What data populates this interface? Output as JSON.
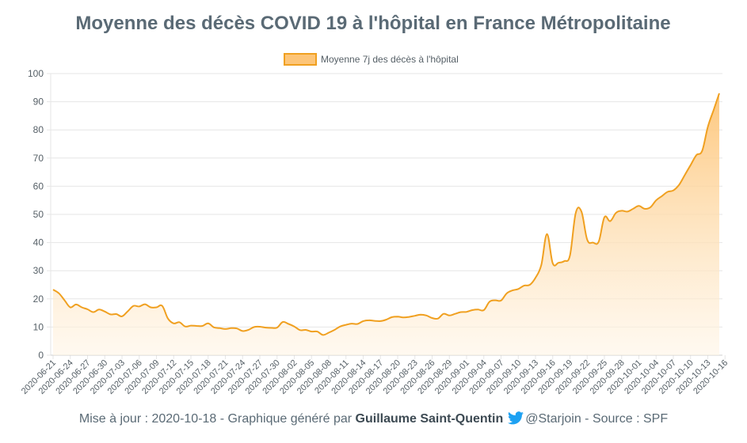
{
  "chart_data": {
    "type": "area",
    "title": "Moyenne des décès COVID 19 à l'hôpital en France Métropolitaine",
    "xlabel": "",
    "ylabel": "",
    "ylim": [
      0,
      100
    ],
    "yticks": [
      0,
      10,
      20,
      30,
      40,
      50,
      60,
      70,
      80,
      90,
      100
    ],
    "grid": true,
    "legend_position": "top-center",
    "colors": {
      "line": "#f0a020",
      "fill_top": "#fdc578",
      "fill_bottom": "#fff5e6",
      "grid": "#e6e6e6"
    },
    "x_start": "2020-06-21",
    "x_end": "2020-10-18",
    "x_tick_labels": [
      "2020-06-21",
      "2020-06-24",
      "2020-06-27",
      "2020-06-30",
      "2020-07-03",
      "2020-07-06",
      "2020-07-09",
      "2020-07-12",
      "2020-07-15",
      "2020-07-18",
      "2020-07-21",
      "2020-07-24",
      "2020-07-27",
      "2020-07-30",
      "2020-08-02",
      "2020-08-05",
      "2020-08-08",
      "2020-08-11",
      "2020-08-14",
      "2020-08-17",
      "2020-08-20",
      "2020-08-23",
      "2020-08-26",
      "2020-08-29",
      "2020-09-01",
      "2020-09-04",
      "2020-09-07",
      "2020-09-10",
      "2020-09-13",
      "2020-09-16",
      "2020-09-19",
      "2020-09-22",
      "2020-09-25",
      "2020-09-28",
      "2020-10-01",
      "2020-10-04",
      "2020-10-07",
      "2020-10-10",
      "2020-10-13",
      "2020-10-16"
    ],
    "series": [
      {
        "name": "Moyenne 7j des décès à l'hôpital",
        "values": [
          23.3,
          22.0,
          19.5,
          17.0,
          18.0,
          17.0,
          16.3,
          15.3,
          16.2,
          15.5,
          14.5,
          14.6,
          13.8,
          15.6,
          17.5,
          17.3,
          18.1,
          17.0,
          17.0,
          17.5,
          13.0,
          11.3,
          11.7,
          10.2,
          10.5,
          10.4,
          10.4,
          11.3,
          9.9,
          9.6,
          9.3,
          9.6,
          9.5,
          8.6,
          9.0,
          10.0,
          10.1,
          9.8,
          9.7,
          9.8,
          11.8,
          11.1,
          10.2,
          8.9,
          9.0,
          8.4,
          8.4,
          7.2,
          8.0,
          9.0,
          10.2,
          10.8,
          11.2,
          11.1,
          12.1,
          12.4,
          12.2,
          12.1,
          12.6,
          13.5,
          13.7,
          13.4,
          13.6,
          14.0,
          14.4,
          14.1,
          13.2,
          13.0,
          14.7,
          14.1,
          14.7,
          15.3,
          15.4,
          16.0,
          16.2,
          16.0,
          19.0,
          19.5,
          19.4,
          22.0,
          23.0,
          23.5,
          24.7,
          25.0,
          27.5,
          32.0,
          43.0,
          32.6,
          32.8,
          33.4,
          35.4,
          50.5,
          51.0,
          41.0,
          40.0,
          40.3,
          49.0,
          47.6,
          50.5,
          51.3,
          51.0,
          52.0,
          53.0,
          52.0,
          52.5,
          55.0,
          56.5,
          58.0,
          58.5,
          60.5,
          64.0,
          67.5,
          71.0,
          72.5,
          81.0,
          87.0,
          93.0
        ]
      }
    ]
  },
  "footer": {
    "prefix": "Mise à jour : 2020-10-18 - Graphique généré par ",
    "author": "Guillaume Saint-Quentin",
    "handle": "@Starjoin",
    "source": " - Source : SPF",
    "icon": "twitter-bird-icon",
    "icon_color": "#1da1f2"
  }
}
